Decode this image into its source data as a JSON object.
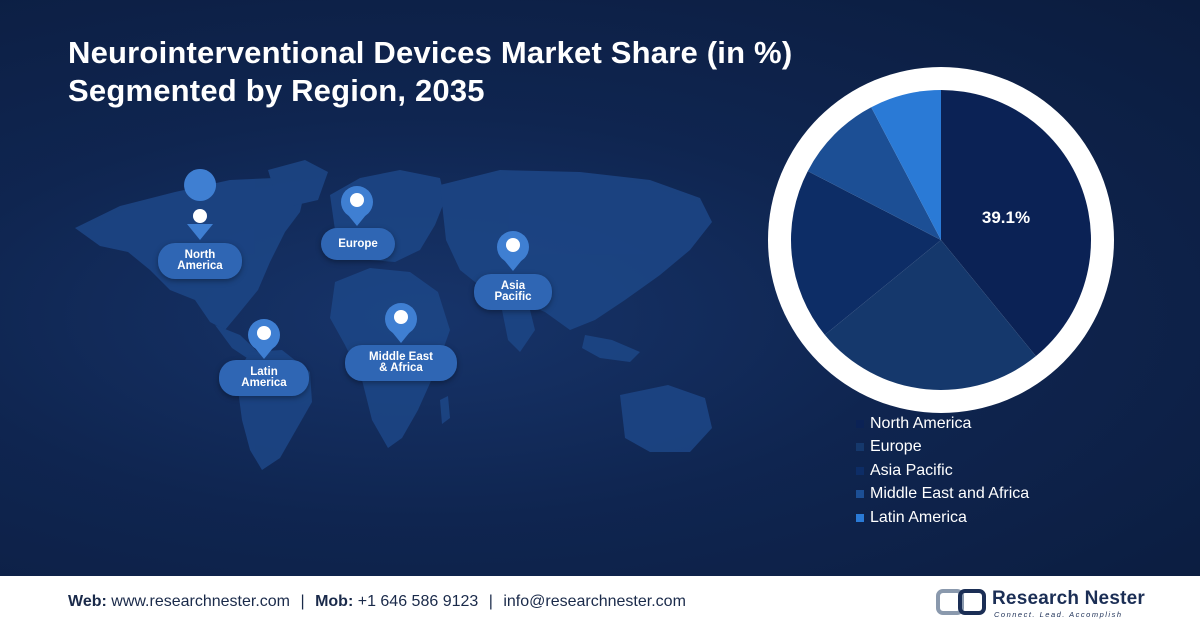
{
  "title_line1": "Neurointerventional Devices Market Share (in %)",
  "title_line2": "Segmented by Region, 2035",
  "map_labels": {
    "north_america": "North\nAmerica",
    "europe": "Europe",
    "asia_pacific": "Asia\nPacific",
    "middle_east_africa": "Middle East\n& Africa",
    "latin_america": "Latin\nAmerica"
  },
  "chart_data": {
    "type": "pie",
    "title": "Neurointerventional Devices Market Share (in %) Segmented by Region, 2035",
    "categories": [
      "North America",
      "Europe",
      "Asia Pacific",
      "Middle East and Africa",
      "Latin America"
    ],
    "values": [
      39.1,
      25.0,
      18.5,
      9.7,
      7.7
    ],
    "data_labels": [
      "39.1%",
      "",
      "",
      "",
      ""
    ],
    "colors": [
      "#0b2255",
      "#15386c",
      "#0d2d66",
      "#1c4f95",
      "#2a7ad6"
    ],
    "legend_position": "bottom-right"
  },
  "footer": {
    "web_label": "Web:",
    "web_value": "www.researchnester.com",
    "mob_label": "Mob:",
    "mob_value": "+1 646 586 9123",
    "email": "info@researchnester.com",
    "separator": "|"
  },
  "logo": {
    "name": "Research Nester",
    "tagline": "Connect. Lead. Accomplish"
  }
}
